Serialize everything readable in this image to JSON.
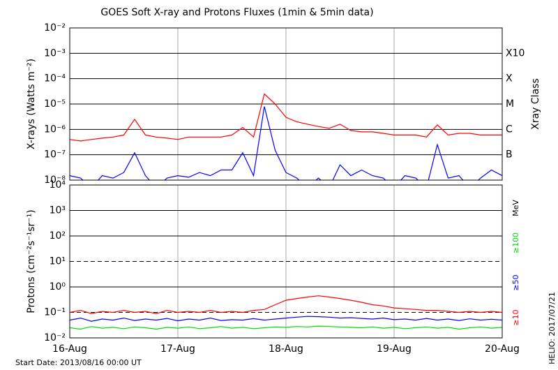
{
  "title": "GOES Soft X-ray and Protons Fluxes   (1min & 5min data)",
  "start_date": "Start Date: 2013/08/16 00:00 UT",
  "credit": "HELIO: 2017/07/21",
  "chart_data": [
    {
      "type": "line",
      "ylabel": "X-rays (Watts m⁻²)",
      "y2label": "Xray Class",
      "log_y": true,
      "grid": true,
      "x": [
        0,
        0.1,
        0.2,
        0.3,
        0.4,
        0.5,
        0.6,
        0.7,
        0.8,
        0.9,
        1,
        1.1,
        1.2,
        1.3,
        1.4,
        1.5,
        1.6,
        1.7,
        1.8,
        1.9,
        2,
        2.1,
        2.2,
        2.3,
        2.4,
        2.5,
        2.6,
        2.7,
        2.8,
        2.9,
        3,
        3.1,
        3.2,
        3.3,
        3.4,
        3.5,
        3.6,
        3.7,
        3.8,
        3.9,
        4
      ],
      "xlim": [
        0,
        4
      ],
      "xticks": [
        0,
        1,
        2,
        3,
        4
      ],
      "ylim": [
        1e-08,
        0.01
      ],
      "yticks": [
        {
          "value": 0.01,
          "label": "10⁻²"
        },
        {
          "value": 0.001,
          "label": "10⁻³"
        },
        {
          "value": 0.0001,
          "label": "10⁻⁴"
        },
        {
          "value": 1e-05,
          "label": "10⁻⁵"
        },
        {
          "value": 1e-06,
          "label": "10⁻⁶"
        },
        {
          "value": 1e-07,
          "label": "10⁻⁷"
        },
        {
          "value": 1e-08,
          "label": "10⁻⁸"
        }
      ],
      "y2ticks": [
        {
          "value": 0.001,
          "label": "X10"
        },
        {
          "value": 0.0001,
          "label": "X"
        },
        {
          "value": 1e-05,
          "label": "M"
        },
        {
          "value": 1e-06,
          "label": "C"
        },
        {
          "value": 1e-07,
          "label": "B"
        }
      ],
      "series": [
        {
          "color": "#ff0000",
          "values": [
            4e-07,
            3.5e-07,
            4e-07,
            4.5e-07,
            5e-07,
            6e-07,
            2.5e-06,
            6e-07,
            5e-07,
            4.5e-07,
            4e-07,
            5e-07,
            5e-07,
            5e-07,
            5e-07,
            6e-07,
            1.2e-06,
            5e-07,
            2.5e-05,
            1e-05,
            3e-06,
            2e-06,
            1.6e-06,
            1.3e-06,
            1.1e-06,
            1.6e-06,
            9e-07,
            8e-07,
            8e-07,
            7e-07,
            6e-07,
            6e-07,
            6e-07,
            5e-07,
            1.5e-06,
            6e-07,
            7e-07,
            7e-07,
            6e-07,
            6e-07,
            6e-07
          ]
        },
        {
          "color": "#0000ff",
          "values": [
            1.5e-08,
            1.2e-08,
            5e-09,
            1.5e-08,
            1.2e-08,
            2e-08,
            1.2e-07,
            1.5e-08,
            5e-09,
            1.2e-08,
            1.5e-08,
            1.3e-08,
            2e-08,
            1.5e-08,
            2.5e-08,
            2.5e-08,
            1.2e-07,
            1.5e-08,
            8e-06,
            1.5e-07,
            2e-08,
            1.2e-08,
            5e-09,
            1.2e-08,
            5e-09,
            4e-08,
            1.5e-08,
            2.5e-08,
            1.5e-08,
            1.2e-08,
            5e-09,
            1.5e-08,
            1.2e-08,
            5e-09,
            2.5e-07,
            1.2e-08,
            1.5e-08,
            5e-09,
            1.2e-08,
            2.5e-08,
            1.5e-08
          ]
        }
      ]
    },
    {
      "type": "line",
      "ylabel": "Protons (cm⁻²s⁻¹sr⁻¹)",
      "unit_label": "MeV",
      "log_y": true,
      "grid": true,
      "dashed_gridlines": [
        10,
        0.1
      ],
      "x": [
        0,
        0.1,
        0.2,
        0.3,
        0.4,
        0.5,
        0.6,
        0.7,
        0.8,
        0.9,
        1,
        1.1,
        1.2,
        1.3,
        1.4,
        1.5,
        1.6,
        1.7,
        1.8,
        1.9,
        2,
        2.1,
        2.2,
        2.3,
        2.4,
        2.5,
        2.6,
        2.7,
        2.8,
        2.9,
        3,
        3.1,
        3.2,
        3.3,
        3.4,
        3.5,
        3.6,
        3.7,
        3.8,
        3.9,
        4
      ],
      "xlim": [
        0,
        4
      ],
      "xticks": [
        {
          "value": 0,
          "label": "16-Aug"
        },
        {
          "value": 1,
          "label": "17-Aug"
        },
        {
          "value": 2,
          "label": "18-Aug"
        },
        {
          "value": 3,
          "label": "19-Aug"
        },
        {
          "value": 4,
          "label": "20-Aug"
        }
      ],
      "ylim": [
        0.01,
        10000
      ],
      "yticks": [
        {
          "value": 10000,
          "label": "10⁴"
        },
        {
          "value": 1000,
          "label": "10³"
        },
        {
          "value": 100,
          "label": "10²"
        },
        {
          "value": 10,
          "label": "10¹"
        },
        {
          "value": 1,
          "label": "10⁰"
        },
        {
          "value": 0.1,
          "label": "10⁻¹"
        },
        {
          "value": 0.01,
          "label": "10⁻²"
        }
      ],
      "series": [
        {
          "name": "≥100",
          "color": "#00dd00",
          "values": [
            0.025,
            0.022,
            0.028,
            0.024,
            0.026,
            0.023,
            0.027,
            0.025,
            0.022,
            0.026,
            0.024,
            0.027,
            0.023,
            0.025,
            0.028,
            0.024,
            0.026,
            0.023,
            0.025,
            0.027,
            0.026,
            0.028,
            0.027,
            0.029,
            0.028,
            0.027,
            0.026,
            0.025,
            0.027,
            0.024,
            0.026,
            0.023,
            0.025,
            0.027,
            0.024,
            0.026,
            0.022,
            0.025,
            0.027,
            0.024,
            0.026
          ]
        },
        {
          "name": "≥50",
          "color": "#0000ff",
          "values": [
            0.05,
            0.06,
            0.045,
            0.055,
            0.05,
            0.06,
            0.048,
            0.055,
            0.05,
            0.058,
            0.047,
            0.055,
            0.05,
            0.06,
            0.048,
            0.052,
            0.05,
            0.057,
            0.05,
            0.055,
            0.06,
            0.065,
            0.07,
            0.068,
            0.065,
            0.06,
            0.062,
            0.058,
            0.055,
            0.06,
            0.052,
            0.055,
            0.05,
            0.058,
            0.05,
            0.055,
            0.048,
            0.056,
            0.05,
            0.054,
            0.05
          ]
        },
        {
          "name": "≥10",
          "color": "#ff0000",
          "values": [
            0.1,
            0.12,
            0.09,
            0.11,
            0.1,
            0.12,
            0.1,
            0.11,
            0.09,
            0.12,
            0.1,
            0.11,
            0.1,
            0.12,
            0.1,
            0.11,
            0.1,
            0.12,
            0.13,
            0.2,
            0.3,
            0.35,
            0.4,
            0.45,
            0.4,
            0.35,
            0.3,
            0.25,
            0.2,
            0.18,
            0.15,
            0.14,
            0.13,
            0.12,
            0.12,
            0.11,
            0.1,
            0.11,
            0.1,
            0.11,
            0.1
          ]
        }
      ]
    }
  ]
}
